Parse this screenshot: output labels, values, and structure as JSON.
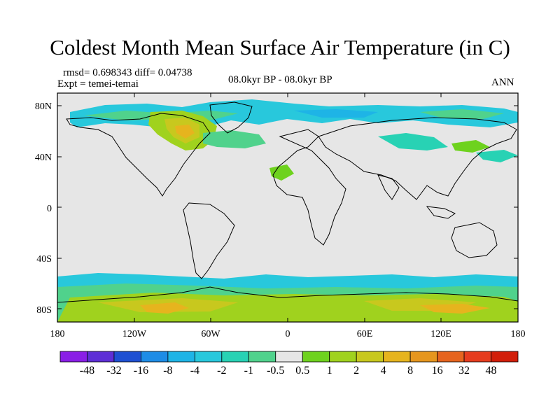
{
  "title": "Coldest Month Mean Surface Air Temperature (in C)",
  "stats": "rmsd= 0.698343 diff= 0.04738",
  "expt": "Expt = temei-temai",
  "period": "08.0kyr BP - 08.0kyr BP",
  "season": "ANN",
  "lat_ticks": [
    "80N",
    "40N",
    "0",
    "40S",
    "80S"
  ],
  "lon_ticks": [
    "180",
    "120W",
    "60W",
    "0",
    "60E",
    "120E",
    "180"
  ],
  "colorbar": {
    "labels": [
      "-48",
      "-32",
      "-16",
      "-8",
      "-4",
      "-2",
      "-1",
      "-0.5",
      "0.5",
      "1",
      "2",
      "4",
      "8",
      "16",
      "32",
      "48"
    ],
    "colors": [
      "#8a1ee6",
      "#5e2fd6",
      "#1e50d2",
      "#1e8ce6",
      "#1eb4e6",
      "#28c8dc",
      "#28d2b4",
      "#50d28c",
      "#e6e6e6",
      "#6ed21e",
      "#a0d21e",
      "#c8c81e",
      "#e6b41e",
      "#e6961e",
      "#e6641e",
      "#e63c1e",
      "#d21e0a"
    ]
  }
}
